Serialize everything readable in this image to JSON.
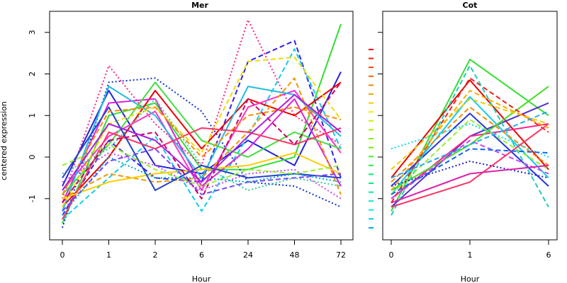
{
  "chart_data": [
    {
      "type": "line",
      "panel": "left",
      "title": "Mer",
      "xlabel": "Hour",
      "ylabel": "centered expression",
      "categories": [
        "0",
        "1",
        "2",
        "6",
        "24",
        "48",
        "72"
      ],
      "yticks": [
        -1,
        0,
        1,
        2,
        3
      ],
      "ylim": [
        -2.0,
        3.5
      ],
      "grid": false,
      "series": [
        {
          "values": [
            -0.7,
            1.6,
            -0.2,
            -0.4,
            0.4,
            -0.2,
            2.05
          ],
          "color": "#2222dd",
          "dash": "solid"
        },
        {
          "values": [
            -1.6,
            1.0,
            1.3,
            -0.3,
            -0.3,
            0.0,
            3.2
          ],
          "color": "#33dd33",
          "dash": "solid"
        },
        {
          "values": [
            -1.0,
            2.2,
            0.8,
            -0.2,
            3.3,
            1.0,
            0.3
          ],
          "color": "#ff2288",
          "dash": "dot"
        },
        {
          "values": [
            -1.7,
            1.8,
            1.9,
            1.1,
            -0.6,
            -0.7,
            -1.2
          ],
          "color": "#1133cc",
          "dash": "dot"
        },
        {
          "values": [
            -1.4,
            0.4,
            -0.5,
            -0.6,
            2.3,
            2.8,
            -0.5
          ],
          "color": "#3322ee",
          "dash": "dash"
        },
        {
          "values": [
            -1.5,
            -0.5,
            0.5,
            -1.3,
            0.5,
            2.6,
            0.2
          ],
          "color": "#11ccee",
          "dash": "dash"
        },
        {
          "values": [
            -1.2,
            0.0,
            1.6,
            0.2,
            1.4,
            1.0,
            1.8
          ],
          "color": "#ee0000",
          "dash": "solid"
        },
        {
          "values": [
            -0.8,
            0.5,
            1.1,
            -0.8,
            1.2,
            1.6,
            0.1
          ],
          "color": "#ff33cc",
          "dash": "solid"
        },
        {
          "values": [
            -1.1,
            1.3,
            1.4,
            -0.7,
            0.2,
            1.4,
            -0.7
          ],
          "color": "#dd22dd",
          "dash": "solid"
        },
        {
          "values": [
            -1.3,
            1.7,
            1.0,
            -0.5,
            1.7,
            1.5,
            0.5
          ],
          "color": "#22bbdd",
          "dash": "solid"
        },
        {
          "values": [
            -0.9,
            0.3,
            1.8,
            0.4,
            0.0,
            0.6,
            0.2
          ],
          "color": "#44dd44",
          "dash": "solid"
        },
        {
          "values": [
            -1.0,
            -0.4,
            -0.6,
            -0.5,
            0.6,
            1.9,
            -0.9
          ],
          "color": "#ee9900",
          "dash": "dash"
        },
        {
          "values": [
            -1.2,
            0.8,
            1.2,
            0.1,
            2.3,
            2.4,
            0.9
          ],
          "color": "#eedd00",
          "dash": "dash"
        },
        {
          "values": [
            -0.6,
            0.1,
            -0.2,
            -0.8,
            -0.4,
            -0.3,
            -1.0
          ],
          "color": "#cc44ee",
          "dash": "dot"
        },
        {
          "values": [
            -1.5,
            0.6,
            0.2,
            0.7,
            0.6,
            0.3,
            0.7
          ],
          "color": "#ff3366",
          "dash": "solid"
        },
        {
          "values": [
            -0.4,
            0.2,
            1.4,
            -0.2,
            -0.8,
            -0.5,
            -0.7
          ],
          "color": "#33cc99",
          "dash": "dot"
        },
        {
          "values": [
            -1.0,
            -0.6,
            -0.4,
            -0.3,
            -0.2,
            0.1,
            -0.4
          ],
          "color": "#ffcc00",
          "dash": "solid"
        },
        {
          "values": [
            -0.5,
            1.2,
            -0.8,
            -0.2,
            -0.5,
            -0.4,
            -0.5
          ],
          "color": "#2244cc",
          "dash": "solid"
        },
        {
          "values": [
            -1.1,
            0.4,
            0.6,
            -1.0,
            1.4,
            0.3,
            1.8
          ],
          "color": "#cc0066",
          "dash": "dash"
        },
        {
          "values": [
            -1.3,
            -0.1,
            0.2,
            -0.9,
            -0.6,
            -0.5,
            -0.4
          ],
          "color": "#7744ff",
          "dash": "dash"
        },
        {
          "values": [
            -0.2,
            0.3,
            -0.3,
            -0.7,
            -0.3,
            -0.4,
            -0.2
          ],
          "color": "#99ee33",
          "dash": "dash"
        },
        {
          "values": [
            -0.9,
            1.1,
            1.2,
            0.0,
            1.0,
            1.2,
            0.9
          ],
          "color": "#ff8800",
          "dash": "dash"
        },
        {
          "values": [
            -1.4,
            0.0,
            -0.5,
            -0.5,
            -0.6,
            -0.4,
            -0.6
          ],
          "color": "#00aacc",
          "dash": "dot"
        },
        {
          "values": [
            -0.8,
            0.8,
            0.4,
            -0.6,
            0.5,
            1.5,
            0.6
          ],
          "color": "#aa22dd",
          "dash": "solid"
        }
      ]
    },
    {
      "type": "line",
      "panel": "right",
      "title": "Cot",
      "xlabel": "Hour",
      "categories": [
        "0",
        "1",
        "6"
      ],
      "ylim": [
        -2.0,
        3.5
      ],
      "grid": false,
      "legend_colors": [
        "#ee0000",
        "#ee2200",
        "#ee4400",
        "#ee6600",
        "#ee8800",
        "#eeaa00",
        "#eecc00",
        "#eeee00",
        "#ccee00",
        "#aaee00",
        "#88ee00",
        "#66ee00",
        "#44ee22",
        "#22ee44",
        "#00ee66",
        "#00ee88",
        "#00eeaa",
        "#00eecc",
        "#00eeee",
        "#00ccee",
        "#00aaee"
      ],
      "series": [
        {
          "values": [
            -1.3,
            2.35,
            1.0
          ],
          "color": "#33dd33",
          "dash": "solid"
        },
        {
          "values": [
            -0.5,
            1.85,
            -0.3
          ],
          "color": "#ee0000",
          "dash": "solid"
        },
        {
          "values": [
            -0.9,
            1.45,
            -0.5
          ],
          "color": "#11ccee",
          "dash": "solid"
        },
        {
          "values": [
            -0.7,
            1.05,
            -0.7
          ],
          "color": "#2233dd",
          "dash": "solid"
        },
        {
          "values": [
            -1.2,
            0.5,
            1.3
          ],
          "color": "#5533cc",
          "dash": "solid"
        },
        {
          "values": [
            -1.0,
            0.5,
            0.8
          ],
          "color": "#ff2288",
          "dash": "solid"
        },
        {
          "values": [
            -0.8,
            0.3,
            1.7
          ],
          "color": "#44dd22",
          "dash": "solid"
        },
        {
          "values": [
            -1.1,
            1.9,
            0.6
          ],
          "color": "#ee2222",
          "dash": "dash"
        },
        {
          "values": [
            -0.3,
            1.4,
            0.8
          ],
          "color": "#eecc00",
          "dash": "dash"
        },
        {
          "values": [
            -1.4,
            2.2,
            -1.2
          ],
          "color": "#22ccbb",
          "dash": "dash"
        },
        {
          "values": [
            -0.6,
            1.2,
            -0.2
          ],
          "color": "#ff8800",
          "dash": "dash"
        },
        {
          "values": [
            -0.9,
            0.9,
            -0.3
          ],
          "color": "#99ee33",
          "dash": "dash"
        },
        {
          "values": [
            0.2,
            0.8,
            0.0
          ],
          "color": "#00ddee",
          "dash": "dot"
        },
        {
          "values": [
            -0.7,
            -0.1,
            -0.5
          ],
          "color": "#2222bb",
          "dash": "dot"
        },
        {
          "values": [
            -1.0,
            0.4,
            -0.4
          ],
          "color": "#cc44ee",
          "dash": "dash"
        },
        {
          "values": [
            -1.2,
            -0.6,
            0.8
          ],
          "color": "#ff3366",
          "dash": "solid"
        },
        {
          "values": [
            -0.8,
            1.6,
            0.7
          ],
          "color": "#ffaa00",
          "dash": "dash"
        },
        {
          "values": [
            -1.1,
            -0.4,
            -0.2
          ],
          "color": "#dd22aa",
          "dash": "solid"
        },
        {
          "values": [
            -0.9,
            0.2,
            0.1
          ],
          "color": "#1166ee",
          "dash": "dash"
        },
        {
          "values": [
            -0.5,
            0.3,
            1.1
          ],
          "color": "#22aaee",
          "dash": "dash"
        }
      ]
    }
  ]
}
